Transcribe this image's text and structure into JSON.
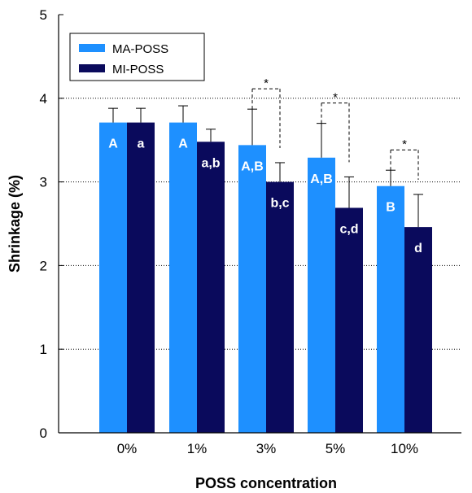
{
  "chart_data": {
    "type": "bar",
    "xlabel": "POSS concentration",
    "ylabel": "Shrinkage (%)",
    "ylim": [
      0,
      5
    ],
    "yticks": [
      "0",
      "1",
      "2",
      "3",
      "4",
      "5"
    ],
    "grid": "horizontal dotted at 1, 2, 3, 4",
    "categories": [
      "0%",
      "1%",
      "3%",
      "5%",
      "10%"
    ],
    "legend": {
      "position": "top-left"
    },
    "series": [
      {
        "name": "MA-POSS",
        "color": "#1e90ff",
        "values": [
          3.71,
          3.71,
          3.44,
          3.29,
          2.95
        ],
        "errors": [
          0.17,
          0.2,
          0.43,
          0.41,
          0.19
        ],
        "letters": [
          "A",
          "A",
          "A,B",
          "A,B",
          "B"
        ]
      },
      {
        "name": "MI-POSS",
        "color": "#0a0a5c",
        "values": [
          3.71,
          3.48,
          3.0,
          2.69,
          2.46
        ],
        "errors": [
          0.17,
          0.15,
          0.23,
          0.37,
          0.39
        ],
        "letters": [
          "a",
          "a,b",
          "b,c",
          "c,d",
          "d"
        ]
      }
    ],
    "significance": [
      {
        "category_index": 2,
        "label": "*"
      },
      {
        "category_index": 3,
        "label": "*"
      },
      {
        "category_index": 4,
        "label": "*"
      }
    ]
  }
}
